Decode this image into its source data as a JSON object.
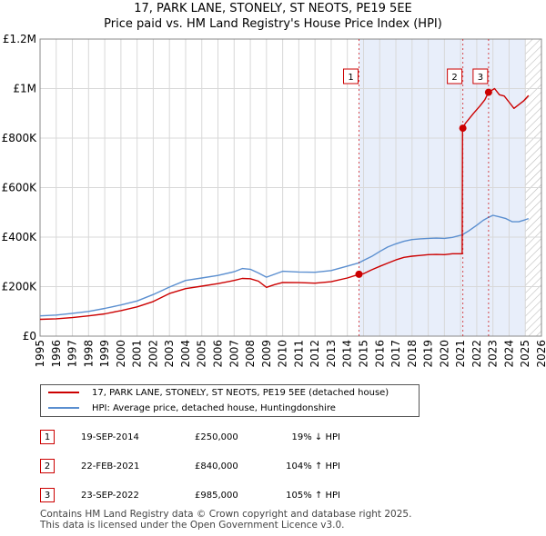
{
  "title_line1": "17, PARK LANE, STONELY, ST NEOTS, PE19 5EE",
  "title_line2": "Price paid vs. HM Land Registry's House Price Index (HPI)",
  "chart_data": {
    "type": "line",
    "title": "17, PARK LANE, STONELY, ST NEOTS, PE19 5EE — Price paid vs. HM Land Registry's House Price Index (HPI)",
    "xlabel": "",
    "ylabel": "",
    "xlim": [
      1995,
      2026
    ],
    "ylim": [
      0,
      1200000
    ],
    "x_ticks": [
      1995,
      1996,
      1997,
      1998,
      1999,
      2000,
      2001,
      2002,
      2003,
      2004,
      2005,
      2006,
      2007,
      2008,
      2009,
      2010,
      2011,
      2012,
      2013,
      2014,
      2015,
      2016,
      2017,
      2018,
      2019,
      2020,
      2021,
      2022,
      2023,
      2024,
      2025,
      2026
    ],
    "y_ticks": [
      0,
      200000,
      400000,
      600000,
      800000,
      1000000,
      1200000
    ],
    "y_tick_labels": [
      "£0",
      "£200K",
      "£400K",
      "£600K",
      "£800K",
      "£1M",
      "£1.2M"
    ],
    "grid": true,
    "shaded_from": 2014.72,
    "hatched_from": 2025.0,
    "series": [
      {
        "name": "17, PARK LANE, STONELY, ST NEOTS, PE19 5EE (detached house)",
        "color": "#cc0000",
        "points": [
          [
            1995.0,
            68000
          ],
          [
            1996.0,
            70000
          ],
          [
            1997.0,
            75000
          ],
          [
            1998.0,
            82000
          ],
          [
            1999.0,
            90000
          ],
          [
            2000.0,
            103000
          ],
          [
            2001.0,
            118000
          ],
          [
            2002.0,
            140000
          ],
          [
            2003.0,
            172000
          ],
          [
            2004.0,
            192000
          ],
          [
            2005.0,
            202000
          ],
          [
            2006.0,
            212000
          ],
          [
            2007.0,
            225000
          ],
          [
            2007.5,
            233000
          ],
          [
            2008.0,
            232000
          ],
          [
            2008.5,
            222000
          ],
          [
            2009.0,
            197000
          ],
          [
            2009.5,
            208000
          ],
          [
            2010.0,
            217000
          ],
          [
            2011.0,
            216000
          ],
          [
            2012.0,
            214000
          ],
          [
            2013.0,
            220000
          ],
          [
            2014.0,
            235000
          ],
          [
            2014.72,
            250000
          ],
          [
            2015.0,
            252000
          ],
          [
            2015.5,
            268000
          ],
          [
            2016.0,
            282000
          ],
          [
            2016.5,
            295000
          ],
          [
            2017.0,
            308000
          ],
          [
            2017.5,
            318000
          ],
          [
            2018.0,
            323000
          ],
          [
            2018.5,
            326000
          ],
          [
            2019.0,
            329000
          ],
          [
            2019.5,
            330000
          ],
          [
            2020.0,
            329000
          ],
          [
            2020.5,
            333000
          ],
          [
            2021.1,
            333000
          ],
          [
            2021.12,
            840000
          ],
          [
            2021.3,
            860000
          ],
          [
            2021.8,
            900000
          ],
          [
            2022.2,
            930000
          ],
          [
            2022.5,
            955000
          ],
          [
            2022.73,
            985000
          ],
          [
            2022.9,
            992000
          ],
          [
            2023.1,
            1000000
          ],
          [
            2023.4,
            975000
          ],
          [
            2023.7,
            970000
          ],
          [
            2024.0,
            945000
          ],
          [
            2024.3,
            920000
          ],
          [
            2024.6,
            935000
          ],
          [
            2024.9,
            950000
          ],
          [
            2025.2,
            972000
          ]
        ]
      },
      {
        "name": "HPI: Average price, detached house, Huntingdonshire",
        "color": "#5b8fd0",
        "points": [
          [
            1995.0,
            82000
          ],
          [
            1996.0,
            85000
          ],
          [
            1997.0,
            92000
          ],
          [
            1998.0,
            100000
          ],
          [
            1999.0,
            112000
          ],
          [
            2000.0,
            126000
          ],
          [
            2001.0,
            142000
          ],
          [
            2002.0,
            168000
          ],
          [
            2003.0,
            198000
          ],
          [
            2004.0,
            225000
          ],
          [
            2005.0,
            235000
          ],
          [
            2006.0,
            245000
          ],
          [
            2007.0,
            260000
          ],
          [
            2007.5,
            273000
          ],
          [
            2008.0,
            270000
          ],
          [
            2008.5,
            255000
          ],
          [
            2009.0,
            238000
          ],
          [
            2009.5,
            250000
          ],
          [
            2010.0,
            262000
          ],
          [
            2011.0,
            259000
          ],
          [
            2012.0,
            258000
          ],
          [
            2013.0,
            265000
          ],
          [
            2014.0,
            283000
          ],
          [
            2014.72,
            296000
          ],
          [
            2015.0,
            306000
          ],
          [
            2015.5,
            322000
          ],
          [
            2016.0,
            342000
          ],
          [
            2016.5,
            360000
          ],
          [
            2017.0,
            373000
          ],
          [
            2017.5,
            383000
          ],
          [
            2018.0,
            390000
          ],
          [
            2018.5,
            393000
          ],
          [
            2019.0,
            395000
          ],
          [
            2019.5,
            396000
          ],
          [
            2020.0,
            395000
          ],
          [
            2020.5,
            399000
          ],
          [
            2021.1,
            409000
          ],
          [
            2021.5,
            425000
          ],
          [
            2022.0,
            448000
          ],
          [
            2022.4,
            468000
          ],
          [
            2022.73,
            480000
          ],
          [
            2023.0,
            488000
          ],
          [
            2023.4,
            482000
          ],
          [
            2023.8,
            475000
          ],
          [
            2024.2,
            462000
          ],
          [
            2024.6,
            462000
          ],
          [
            2025.0,
            470000
          ],
          [
            2025.2,
            475000
          ]
        ]
      }
    ],
    "annotations": [
      {
        "label": "1",
        "x": 2014.72,
        "y": 250000
      },
      {
        "label": "2",
        "x": 2021.14,
        "y": 840000
      },
      {
        "label": "3",
        "x": 2022.73,
        "y": 985000
      }
    ]
  },
  "legend": {
    "property_label": "17, PARK LANE, STONELY, ST NEOTS, PE19 5EE (detached house)",
    "hpi_label": "HPI: Average price, detached house, Huntingdonshire"
  },
  "transactions": [
    {
      "num": "1",
      "date": "19-SEP-2014",
      "price": "£250,000",
      "hpi": "19% ↓ HPI"
    },
    {
      "num": "2",
      "date": "22-FEB-2021",
      "price": "£840,000",
      "hpi": "104% ↑ HPI"
    },
    {
      "num": "3",
      "date": "23-SEP-2022",
      "price": "£985,000",
      "hpi": "105% ↑ HPI"
    }
  ],
  "footer": {
    "line1": "Contains HM Land Registry data © Crown copyright and database right 2025.",
    "line2": "This data is licensed under the Open Government Licence v3.0."
  }
}
